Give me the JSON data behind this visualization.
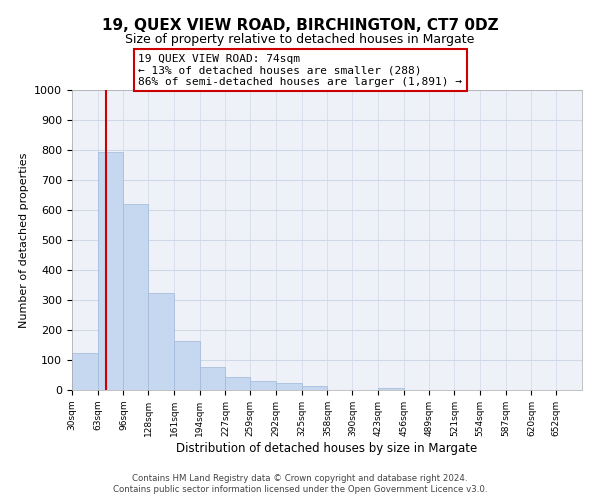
{
  "title": "19, QUEX VIEW ROAD, BIRCHINGTON, CT7 0DZ",
  "subtitle": "Size of property relative to detached houses in Margate",
  "xlabel": "Distribution of detached houses by size in Margate",
  "ylabel": "Number of detached properties",
  "footer_line1": "Contains HM Land Registry data © Crown copyright and database right 2024.",
  "footer_line2": "Contains public sector information licensed under the Open Government Licence v3.0.",
  "bar_edges": [
    30,
    63,
    96,
    128,
    161,
    194,
    227,
    259,
    292,
    325,
    358,
    390,
    423,
    456,
    489,
    521,
    554,
    587,
    620,
    652,
    685
  ],
  "bar_heights": [
    125,
    795,
    620,
    325,
    162,
    78,
    42,
    30,
    25,
    15,
    0,
    0,
    8,
    0,
    0,
    0,
    0,
    0,
    0,
    0
  ],
  "bar_color": "#c5d8f0",
  "bar_edgecolor": "#a0b8d8",
  "reference_line_x": 74,
  "reference_line_color": "#cc0000",
  "ylim": [
    0,
    1000
  ],
  "yticks": [
    0,
    100,
    200,
    300,
    400,
    500,
    600,
    700,
    800,
    900,
    1000
  ],
  "annotation_title": "19 QUEX VIEW ROAD: 74sqm",
  "annotation_line1": "← 13% of detached houses are smaller (288)",
  "annotation_line2": "86% of semi-detached houses are larger (1,891) →",
  "annotation_box_color": "#ffffff",
  "annotation_box_edgecolor": "#cc0000",
  "grid_color": "#d0d8e8",
  "background_color": "#ffffff",
  "plot_bg_color": "#eef2f8"
}
